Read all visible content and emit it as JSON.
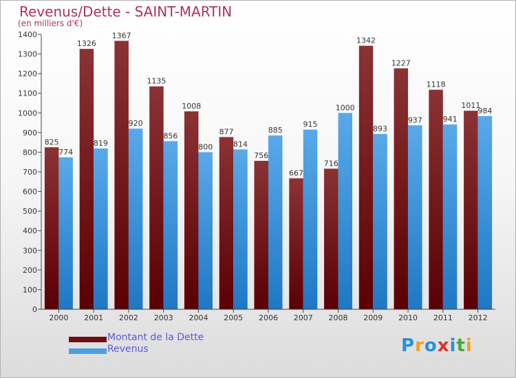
{
  "header": {
    "title": "Revenus/Dette - SAINT-MARTIN",
    "subtitle": "(en milliers d'€)"
  },
  "legend": {
    "items": [
      {
        "label": "Montant de la Dette",
        "color": "#6e0f14"
      },
      {
        "label": "Revenus",
        "color": "#4a9fe0"
      }
    ]
  },
  "logo": {
    "text": "Proxiti"
  },
  "colors": {
    "dette_top": "#8b3234",
    "dette_bottom": "#5a0004",
    "revenus_top": "#59a9ea",
    "revenus_bottom": "#1f78c4",
    "axis": "#444444",
    "tick_text": "#333333",
    "legend_text": "#5b5bd6",
    "title": "#b03060"
  },
  "chart_data": {
    "type": "bar",
    "title": "Revenus/Dette - SAINT-MARTIN",
    "subtitle": "(en milliers d'€)",
    "categories": [
      "2000",
      "2001",
      "2002",
      "2003",
      "2004",
      "2005",
      "2006",
      "2007",
      "2008",
      "2009",
      "2010",
      "2011",
      "2012"
    ],
    "series": [
      {
        "name": "Montant de la Dette",
        "values": [
          825,
          1326,
          1367,
          1135,
          1008,
          877,
          756,
          667,
          716,
          1342,
          1227,
          1118,
          1011
        ]
      },
      {
        "name": "Revenus",
        "values": [
          774,
          819,
          920,
          856,
          800,
          814,
          885,
          915,
          1000,
          893,
          937,
          941,
          984
        ]
      }
    ],
    "ylim": [
      0,
      1400
    ],
    "yticks": [
      0,
      100,
      200,
      300,
      400,
      500,
      600,
      700,
      800,
      900,
      1000,
      1100,
      1200,
      1300,
      1400
    ],
    "grid": false,
    "legend_position": "bottom-left"
  }
}
